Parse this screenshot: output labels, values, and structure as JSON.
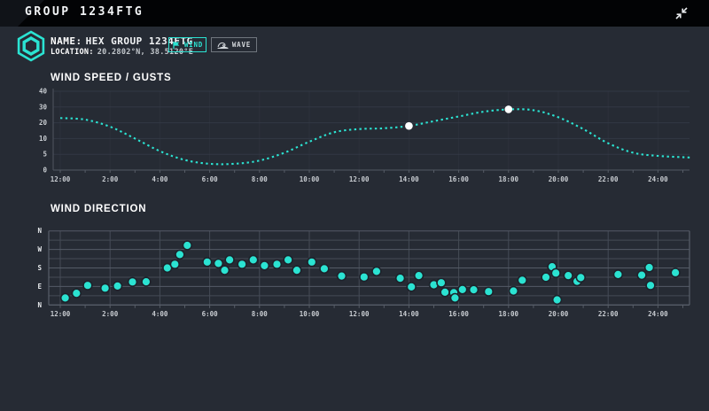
{
  "header": {
    "title": "GROUP 1234FTG"
  },
  "station": {
    "name_label": "NAME:",
    "name_value": "HEX GROUP 1234FTG",
    "location_label": "LOCATION:",
    "location_value": "20.2802°N, 38.5120°E"
  },
  "tabs": [
    {
      "id": "wind",
      "label": "WIND",
      "icon": "flag-icon",
      "active": true
    },
    {
      "id": "wave",
      "label": "WAVE",
      "icon": "wave-icon",
      "active": false
    }
  ],
  "colors": {
    "accent": "#2BE3D2",
    "background": "#262B34",
    "header_bg": "#020305",
    "grid_soft": "#323845",
    "grid_mid": "#454B56",
    "grid_strong": "#565C66",
    "axis_label": "#C9CDD2",
    "direction_label": "#E8EBEE",
    "marker": "#FFFFFF",
    "dot_outline": "#1D222B"
  },
  "time_axis": {
    "tick_labels": [
      "12:00",
      "2:00",
      "4:00",
      "6:00",
      "8:00",
      "10:00",
      "12:00",
      "14:00",
      "16:00",
      "18:00",
      "20:00",
      "22:00",
      "24:00"
    ],
    "tick_hours": [
      0,
      2,
      4,
      6,
      8,
      10,
      12,
      14,
      16,
      18,
      20,
      22,
      24
    ],
    "hours_span": [
      0,
      25.3
    ]
  },
  "chart_data": [
    {
      "type": "line",
      "title": "WIND SPEED / GUSTS",
      "line_style": "dotted",
      "color": "#2BE3D2",
      "y_ticks": [
        0,
        5,
        10,
        20,
        30,
        40
      ],
      "y_scale_note": "tick values equally spaced (non-linear scale)",
      "x_hours": [
        0,
        1,
        2,
        3,
        4,
        5,
        6,
        7,
        8,
        9,
        10,
        11,
        12,
        13,
        14,
        15,
        16,
        17,
        18,
        19,
        20,
        21,
        22,
        23,
        24,
        25.3
      ],
      "values": [
        23,
        22,
        17.5,
        10,
        6,
        3.2,
        2,
        2,
        3,
        5.5,
        9,
        14,
        16,
        16.5,
        18,
        21,
        24,
        27,
        28.5,
        28,
        23.5,
        16,
        8.5,
        5.5,
        4.5,
        4
      ],
      "markers": [
        {
          "hour": 14,
          "value": 18
        },
        {
          "hour": 18,
          "value": 28.5
        }
      ]
    },
    {
      "type": "scatter",
      "title": "WIND DIRECTION",
      "color": "#2BE3D2",
      "y_tick_labels": [
        "N",
        "W",
        "S",
        "E",
        "N"
      ],
      "y_tick_degrees": [
        360,
        270,
        180,
        90,
        0
      ],
      "grid_step_degrees": 45,
      "points": [
        {
          "hour": 0.2,
          "deg": 34
        },
        {
          "hour": 0.65,
          "deg": 57
        },
        {
          "hour": 1.1,
          "deg": 95
        },
        {
          "hour": 1.8,
          "deg": 82
        },
        {
          "hour": 2.3,
          "deg": 92
        },
        {
          "hour": 2.9,
          "deg": 112
        },
        {
          "hour": 3.45,
          "deg": 113
        },
        {
          "hour": 4.3,
          "deg": 180
        },
        {
          "hour": 4.6,
          "deg": 198
        },
        {
          "hour": 4.8,
          "deg": 245
        },
        {
          "hour": 5.1,
          "deg": 290
        },
        {
          "hour": 5.9,
          "deg": 209
        },
        {
          "hour": 6.35,
          "deg": 202
        },
        {
          "hour": 6.6,
          "deg": 169
        },
        {
          "hour": 6.8,
          "deg": 219
        },
        {
          "hour": 7.3,
          "deg": 198
        },
        {
          "hour": 7.75,
          "deg": 219
        },
        {
          "hour": 8.2,
          "deg": 191
        },
        {
          "hour": 8.7,
          "deg": 198
        },
        {
          "hour": 9.15,
          "deg": 219
        },
        {
          "hour": 9.5,
          "deg": 169
        },
        {
          "hour": 10.1,
          "deg": 209
        },
        {
          "hour": 10.6,
          "deg": 176
        },
        {
          "hour": 11.3,
          "deg": 141
        },
        {
          "hour": 12.2,
          "deg": 136
        },
        {
          "hour": 12.7,
          "deg": 163
        },
        {
          "hour": 13.65,
          "deg": 130
        },
        {
          "hour": 14.1,
          "deg": 88
        },
        {
          "hour": 14.4,
          "deg": 143
        },
        {
          "hour": 15.0,
          "deg": 98
        },
        {
          "hour": 15.3,
          "deg": 108
        },
        {
          "hour": 15.45,
          "deg": 62
        },
        {
          "hour": 15.8,
          "deg": 60
        },
        {
          "hour": 15.85,
          "deg": 34
        },
        {
          "hour": 16.15,
          "deg": 75
        },
        {
          "hour": 16.6,
          "deg": 74
        },
        {
          "hour": 17.2,
          "deg": 65
        },
        {
          "hour": 18.2,
          "deg": 68
        },
        {
          "hour": 18.55,
          "deg": 120
        },
        {
          "hour": 19.5,
          "deg": 135
        },
        {
          "hour": 19.75,
          "deg": 186
        },
        {
          "hour": 19.9,
          "deg": 155
        },
        {
          "hour": 19.95,
          "deg": 25
        },
        {
          "hour": 20.4,
          "deg": 143
        },
        {
          "hour": 20.75,
          "deg": 115
        },
        {
          "hour": 20.9,
          "deg": 133
        },
        {
          "hour": 22.4,
          "deg": 148
        },
        {
          "hour": 23.35,
          "deg": 145
        },
        {
          "hour": 23.65,
          "deg": 182
        },
        {
          "hour": 23.7,
          "deg": 95
        },
        {
          "hour": 24.7,
          "deg": 157
        }
      ]
    }
  ]
}
